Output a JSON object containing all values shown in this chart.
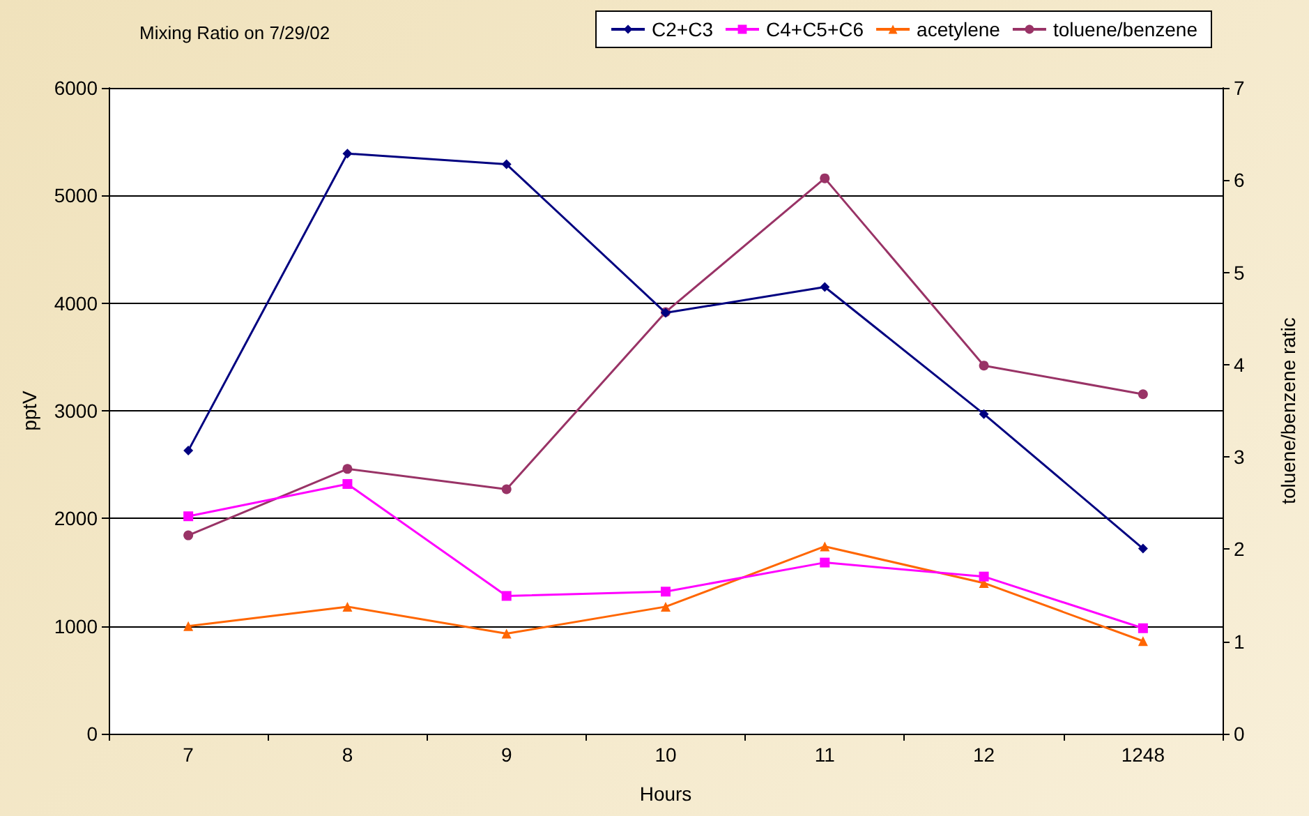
{
  "chart_data": {
    "type": "line",
    "title": "Mixing Ratio on 7/29/02",
    "xlabel": "Hours",
    "ylabel": "pptV",
    "y2label": "toluene/benzene ratic",
    "categories": [
      "7",
      "8",
      "9",
      "10",
      "11",
      "12",
      "1248"
    ],
    "series": [
      {
        "name": "C2+C3",
        "color": "#000080",
        "marker": "diamond",
        "values": [
          2630,
          5390,
          5290,
          3910,
          4150,
          2970,
          1720
        ]
      },
      {
        "name": "C4+C5+C6",
        "color": "#ff00ff",
        "marker": "square",
        "values": [
          2020,
          2320,
          1280,
          1320,
          1590,
          1460,
          980
        ]
      },
      {
        "name": "acetylene",
        "color": "#ff6600",
        "marker": "triangle",
        "values": [
          1000,
          1180,
          930,
          1180,
          1740,
          1400,
          860
        ]
      },
      {
        "name": "toluene/benzene",
        "color": "#993366",
        "marker": "circle",
        "axis": "y2",
        "values": [
          2.15,
          2.87,
          2.65,
          4.57,
          6.02,
          3.99,
          3.68
        ]
      }
    ],
    "ylim": [
      0,
      6000
    ],
    "yticks": [
      0,
      1000,
      2000,
      3000,
      4000,
      5000,
      6000
    ],
    "y2lim": [
      0,
      7
    ],
    "y2ticks": [
      0,
      1,
      2,
      3,
      4,
      5,
      6,
      7
    ],
    "grid": "y",
    "legend": "top right",
    "line_style": "solid"
  }
}
